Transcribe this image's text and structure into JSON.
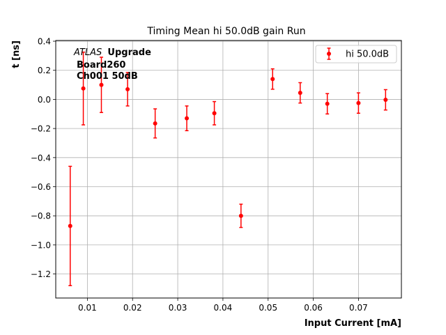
{
  "chart_data": {
    "type": "scatter",
    "title": "Timing Mean hi 50.0dB gain Run",
    "xlabel": "Input Current [mA]",
    "ylabel": "t [ns]",
    "xlim": [
      0.003,
      0.0795
    ],
    "ylim": [
      -1.365,
      0.405
    ],
    "xticks": [
      0.01,
      0.02,
      0.03,
      0.04,
      0.05,
      0.06,
      0.07
    ],
    "xtick_labels": [
      "0.01",
      "0.02",
      "0.03",
      "0.04",
      "0.05",
      "0.06",
      "0.07"
    ],
    "yticks": [
      0.4,
      0.2,
      0.0,
      -0.2,
      -0.4,
      -0.6,
      -0.8,
      -1.0,
      -1.2
    ],
    "ytick_labels": [
      "0.4",
      "0.2",
      "0.0",
      "−0.2",
      "−0.4",
      "−0.6",
      "−0.8",
      "−1.0",
      "−1.2"
    ],
    "grid": true,
    "legend_position": "top-right",
    "annotation": {
      "atlas": "ATLAS",
      "upgrade": "Upgrade",
      "board": "Board260",
      "channel": "Ch001 50dB"
    },
    "series": [
      {
        "name": "hi 50.0dB",
        "color": "#ff0000",
        "points": [
          {
            "x": 0.0062,
            "y": -0.87,
            "err": 0.41
          },
          {
            "x": 0.0091,
            "y": 0.075,
            "err": 0.25
          },
          {
            "x": 0.0131,
            "y": 0.1,
            "err": 0.19
          },
          {
            "x": 0.0189,
            "y": 0.07,
            "err": 0.115
          },
          {
            "x": 0.025,
            "y": -0.165,
            "err": 0.1
          },
          {
            "x": 0.032,
            "y": -0.13,
            "err": 0.085
          },
          {
            "x": 0.0381,
            "y": -0.095,
            "err": 0.08
          },
          {
            "x": 0.044,
            "y": -0.8,
            "err": 0.08
          },
          {
            "x": 0.051,
            "y": 0.14,
            "err": 0.07
          },
          {
            "x": 0.0571,
            "y": 0.045,
            "err": 0.07
          },
          {
            "x": 0.0631,
            "y": -0.03,
            "err": 0.07
          },
          {
            "x": 0.07,
            "y": -0.025,
            "err": 0.07
          },
          {
            "x": 0.076,
            "y": -0.003,
            "err": 0.07
          }
        ]
      }
    ]
  }
}
